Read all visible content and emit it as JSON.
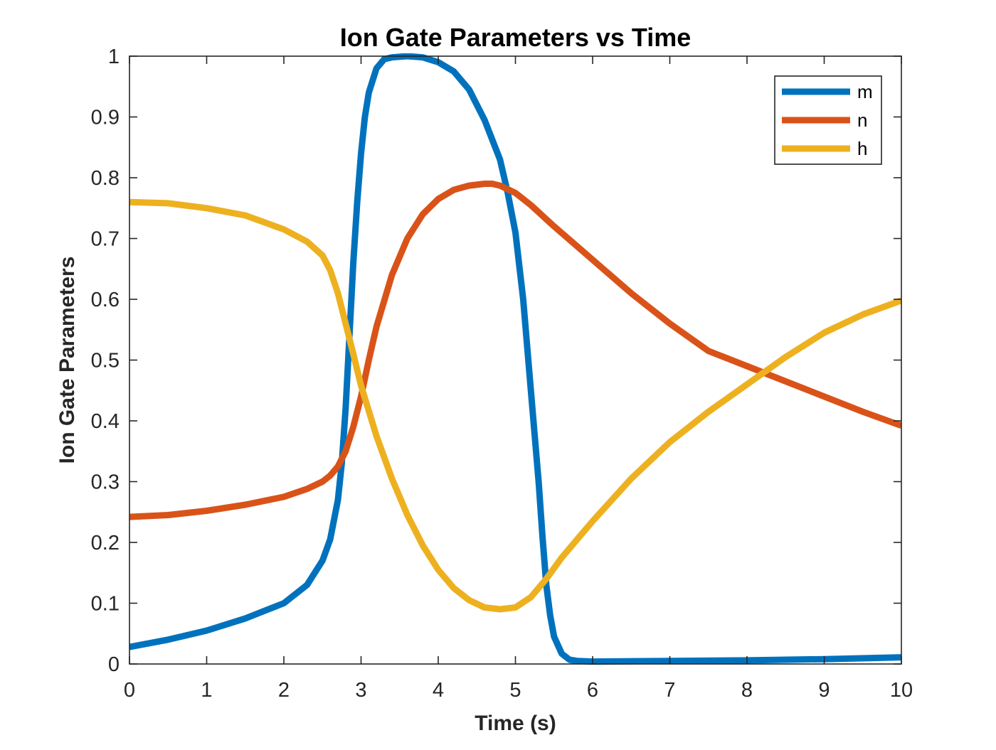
{
  "chart_data": {
    "type": "line",
    "title": "Ion Gate Parameters vs Time",
    "xlabel": "Time (s)",
    "ylabel": "Ion Gate Parameters",
    "xlim": [
      0,
      10
    ],
    "ylim": [
      0,
      1
    ],
    "xticks": [
      0,
      1,
      2,
      3,
      4,
      5,
      6,
      7,
      8,
      9,
      10
    ],
    "yticks": [
      0,
      0.1,
      0.2,
      0.3,
      0.4,
      0.5,
      0.6,
      0.7,
      0.8,
      0.9,
      1
    ],
    "grid": false,
    "legend_position": "top-right",
    "series": [
      {
        "name": "m",
        "color": "#0072BD",
        "x": [
          0,
          0.5,
          1,
          1.5,
          2,
          2.3,
          2.5,
          2.6,
          2.7,
          2.75,
          2.8,
          2.85,
          2.9,
          2.95,
          3.0,
          3.05,
          3.1,
          3.2,
          3.3,
          3.4,
          3.6,
          3.8,
          4.0,
          4.2,
          4.4,
          4.6,
          4.8,
          4.9,
          5.0,
          5.1,
          5.2,
          5.3,
          5.35,
          5.4,
          5.45,
          5.5,
          5.6,
          5.7,
          5.8,
          6,
          7,
          8,
          9,
          10
        ],
        "values": [
          0.028,
          0.04,
          0.055,
          0.075,
          0.1,
          0.13,
          0.17,
          0.205,
          0.27,
          0.33,
          0.42,
          0.54,
          0.66,
          0.76,
          0.84,
          0.9,
          0.94,
          0.98,
          0.995,
          0.998,
          1.0,
          0.998,
          0.99,
          0.975,
          0.945,
          0.895,
          0.83,
          0.775,
          0.71,
          0.6,
          0.45,
          0.3,
          0.21,
          0.13,
          0.08,
          0.045,
          0.017,
          0.007,
          0.005,
          0.004,
          0.005,
          0.006,
          0.008,
          0.011
        ]
      },
      {
        "name": "n",
        "color": "#D95319",
        "x": [
          0,
          0.5,
          1,
          1.5,
          2,
          2.3,
          2.5,
          2.6,
          2.7,
          2.8,
          2.9,
          3.0,
          3.1,
          3.2,
          3.4,
          3.6,
          3.8,
          4.0,
          4.2,
          4.4,
          4.6,
          4.7,
          4.8,
          5.0,
          5.2,
          5.5,
          6,
          6.5,
          7,
          7.5,
          8,
          8.5,
          9,
          9.5,
          10
        ],
        "values": [
          0.242,
          0.245,
          0.252,
          0.262,
          0.275,
          0.288,
          0.3,
          0.31,
          0.325,
          0.35,
          0.39,
          0.44,
          0.5,
          0.555,
          0.64,
          0.7,
          0.74,
          0.765,
          0.78,
          0.787,
          0.79,
          0.79,
          0.787,
          0.775,
          0.755,
          0.72,
          0.665,
          0.61,
          0.56,
          0.515,
          0.49,
          0.465,
          0.44,
          0.415,
          0.392
        ]
      },
      {
        "name": "h",
        "color": "#EDB120",
        "x": [
          0,
          0.5,
          1,
          1.5,
          2,
          2.3,
          2.5,
          2.6,
          2.7,
          2.8,
          2.9,
          3.0,
          3.2,
          3.4,
          3.6,
          3.8,
          4.0,
          4.2,
          4.4,
          4.6,
          4.8,
          5.0,
          5.2,
          5.4,
          5.6,
          5.8,
          6,
          6.5,
          7,
          7.5,
          8,
          8.5,
          9,
          9.5,
          10
        ],
        "values": [
          0.76,
          0.758,
          0.75,
          0.738,
          0.715,
          0.695,
          0.672,
          0.648,
          0.61,
          0.56,
          0.51,
          0.458,
          0.375,
          0.305,
          0.245,
          0.195,
          0.155,
          0.125,
          0.105,
          0.093,
          0.09,
          0.093,
          0.11,
          0.14,
          0.175,
          0.205,
          0.235,
          0.305,
          0.365,
          0.415,
          0.46,
          0.505,
          0.545,
          0.575,
          0.598
        ]
      }
    ]
  }
}
